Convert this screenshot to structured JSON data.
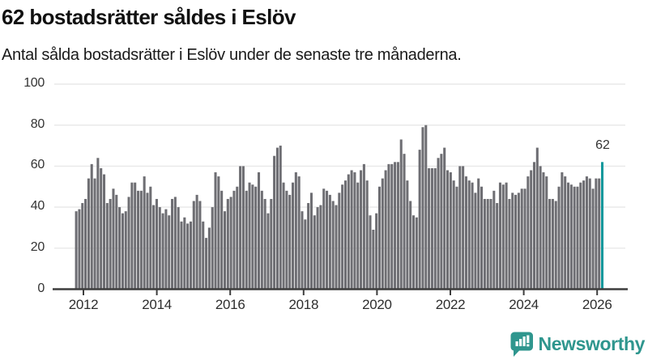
{
  "header": {
    "title": "62 bostadsrätter såldes i Eslöv",
    "subtitle": "Antal sålda bostadsrätter i Eslöv under de senaste tre månaderna."
  },
  "branding": {
    "name": "Newsworthy",
    "icon": "newsworthy-speech-bubble-barchart-icon",
    "color": "#2f968e"
  },
  "colors": {
    "bar": "#6e6e73",
    "highlight": "#12989c",
    "gridline": "#e8e8e8",
    "axis": "#3d3d3d",
    "text": "#333333"
  },
  "chart_data": {
    "type": "bar",
    "title": "62 bostadsrätter såldes i Eslöv",
    "subtitle": "Antal sålda bostadsrätter i Eslöv under de senaste tre månaderna.",
    "ylabel": "",
    "xlabel": "",
    "ylim": [
      0,
      100
    ],
    "y_ticks": [
      0,
      20,
      40,
      60,
      80,
      100
    ],
    "x_tick_labels": [
      "2012",
      "2014",
      "2016",
      "2018",
      "2020",
      "2022",
      "2024",
      "2026"
    ],
    "grid": "horizontal",
    "legend": "none",
    "frequency": "monthly",
    "start_month": "2011-12",
    "end_month": "2026-02",
    "unit": "antal sålda bostadsrätter, rullande tre månader",
    "values": [
      38,
      39,
      42,
      44,
      54,
      61,
      54,
      64,
      59,
      56,
      42,
      44,
      49,
      46,
      40,
      37,
      38,
      45,
      52,
      52,
      48,
      48,
      55,
      47,
      50,
      41,
      44,
      40,
      37,
      39,
      36,
      44,
      45,
      40,
      33,
      35,
      32,
      33,
      43,
      46,
      43,
      33,
      25,
      30,
      40,
      57,
      55,
      48,
      38,
      44,
      45,
      48,
      50,
      60,
      60,
      48,
      52,
      51,
      50,
      57,
      48,
      44,
      37,
      44,
      65,
      69,
      70,
      52,
      48,
      46,
      52,
      57,
      55,
      38,
      34,
      42,
      47,
      36,
      40,
      41,
      49,
      48,
      46,
      43,
      41,
      47,
      51,
      53,
      56,
      58,
      57,
      52,
      58,
      61,
      53,
      36,
      29,
      37,
      50,
      54,
      58,
      61,
      61,
      62,
      62,
      73,
      66,
      53,
      43,
      36,
      35,
      68,
      79,
      80,
      59,
      59,
      59,
      64,
      66,
      69,
      58,
      57,
      53,
      50,
      60,
      60,
      55,
      53,
      52,
      47,
      54,
      50,
      44,
      44,
      44,
      48,
      42,
      52,
      51,
      52,
      44,
      47,
      46,
      47,
      49,
      49,
      55,
      58,
      62,
      69,
      60,
      57,
      55,
      44,
      44,
      43,
      50,
      57,
      55,
      52,
      51,
      50,
      50,
      52,
      53,
      55,
      54,
      49,
      54,
      54,
      62
    ],
    "highlight": {
      "position": "last",
      "value": 62,
      "label": "62",
      "color": "#12989c"
    }
  },
  "annotation": {
    "latest_value_label": "62"
  }
}
